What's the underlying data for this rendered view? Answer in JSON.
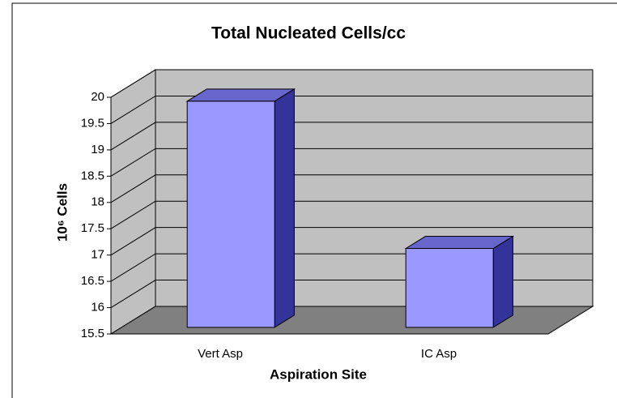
{
  "chart_data": {
    "type": "bar3d",
    "title": "Total Nucleated Cells/cc",
    "x_label": "Aspiration Site",
    "y_label": "10⁶ Cells",
    "categories": [
      "Vert Asp",
      "IC Asp"
    ],
    "values": [
      19.8,
      17.0
    ],
    "color": "#9999ff",
    "ylim": [
      15.5,
      20
    ],
    "yticks": [
      15.5,
      16,
      16.5,
      17,
      17.5,
      18,
      18.5,
      19,
      19.5,
      20
    ],
    "grid": true
  }
}
